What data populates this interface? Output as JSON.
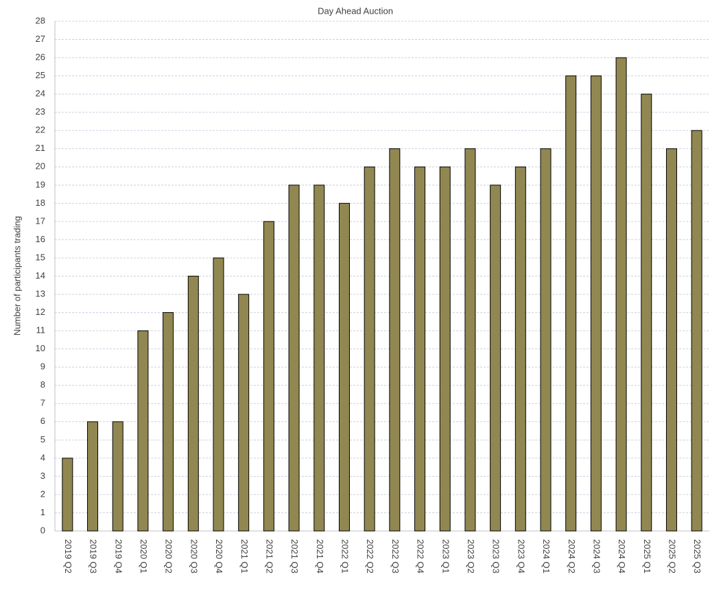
{
  "chart_data": {
    "type": "bar",
    "title": "Day Ahead Auction",
    "y_label": "Number of participants trading",
    "categories": [
      "2019 Q2",
      "2019 Q3",
      "2019 Q4",
      "2020 Q1",
      "2020 Q2",
      "2020 Q3",
      "2020 Q4",
      "2021 Q1",
      "2021 Q2",
      "2021 Q3",
      "2021 Q4",
      "2022 Q1",
      "2022 Q2",
      "2022 Q3",
      "2022 Q4",
      "2023 Q1",
      "2023 Q2",
      "2023 Q3",
      "2023 Q4",
      "2024 Q1",
      "2024 Q2",
      "2024 Q3",
      "2024 Q4",
      "2025 Q1",
      "2025 Q2",
      "2025 Q3"
    ],
    "values": [
      4,
      6,
      6,
      11,
      12,
      14,
      15,
      13,
      17,
      19,
      19,
      18,
      20,
      21,
      20,
      20,
      21,
      19,
      20,
      21,
      25,
      25,
      26,
      24,
      21,
      22
    ],
    "color": "#918751",
    "ylim": [
      0,
      28
    ],
    "yticks": [
      0,
      1,
      2,
      3,
      4,
      5,
      6,
      7,
      8,
      9,
      10,
      11,
      12,
      13,
      14,
      15,
      16,
      17,
      18,
      19,
      20,
      21,
      22,
      23,
      24,
      25,
      26,
      27,
      28
    ],
    "grid": true
  }
}
